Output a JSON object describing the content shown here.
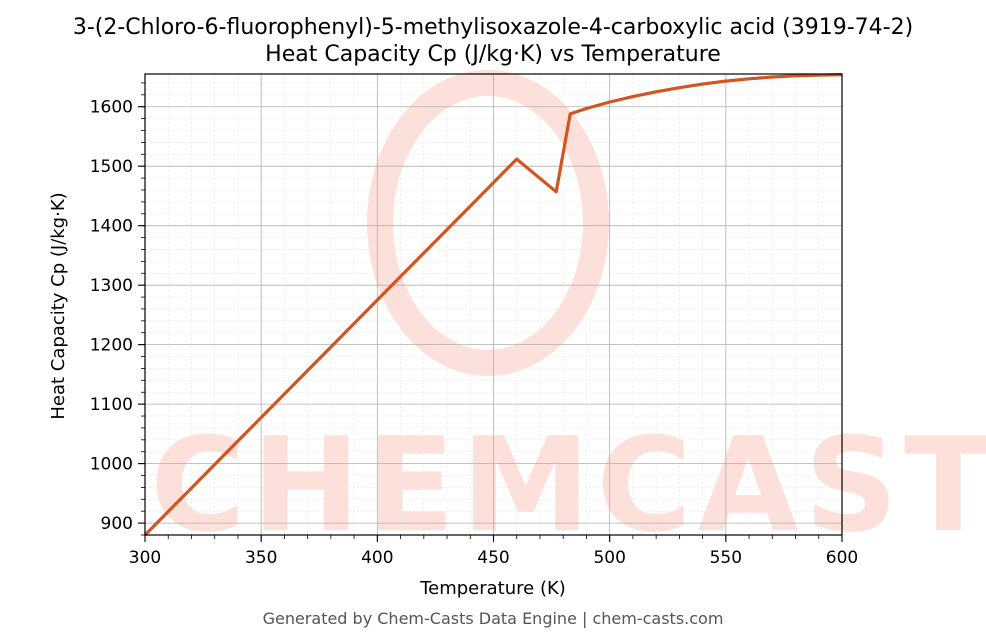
{
  "chart_data": {
    "type": "line",
    "title_line1": "3-(2-Chloro-6-fluorophenyl)-5-methylisoxazole-4-carboxylic acid (3919-74-2)",
    "title_line2": "Heat Capacity Cp (J/kg·K) vs Temperature",
    "xlabel": "Temperature (K)",
    "ylabel": "Heat Capacity Cp (J/kg·K)",
    "xlim": [
      300,
      600
    ],
    "ylim": [
      880,
      1655
    ],
    "x_ticks": [
      300,
      350,
      400,
      450,
      500,
      550,
      600
    ],
    "y_ticks": [
      900,
      1000,
      1100,
      1200,
      1300,
      1400,
      1500,
      1600
    ],
    "grid": true,
    "series": [
      {
        "color": "#d4531f",
        "points": [
          [
            300,
            880
          ],
          [
            320,
            959
          ],
          [
            340,
            1038
          ],
          [
            360,
            1117
          ],
          [
            380,
            1196
          ],
          [
            400,
            1275
          ],
          [
            420,
            1354
          ],
          [
            440,
            1433
          ],
          [
            460,
            1512
          ],
          [
            477,
            1457
          ],
          [
            483,
            1588
          ],
          [
            490,
            1597
          ],
          [
            500,
            1608
          ],
          [
            510,
            1617
          ],
          [
            520,
            1625
          ],
          [
            530,
            1632
          ],
          [
            540,
            1638
          ],
          [
            550,
            1643
          ],
          [
            560,
            1647
          ],
          [
            570,
            1650
          ],
          [
            580,
            1652
          ],
          [
            590,
            1653
          ],
          [
            600,
            1654
          ]
        ]
      }
    ]
  },
  "footer": "Generated by Chem-Casts Data Engine | chem-casts.com",
  "watermark": "CHEMCASTS"
}
